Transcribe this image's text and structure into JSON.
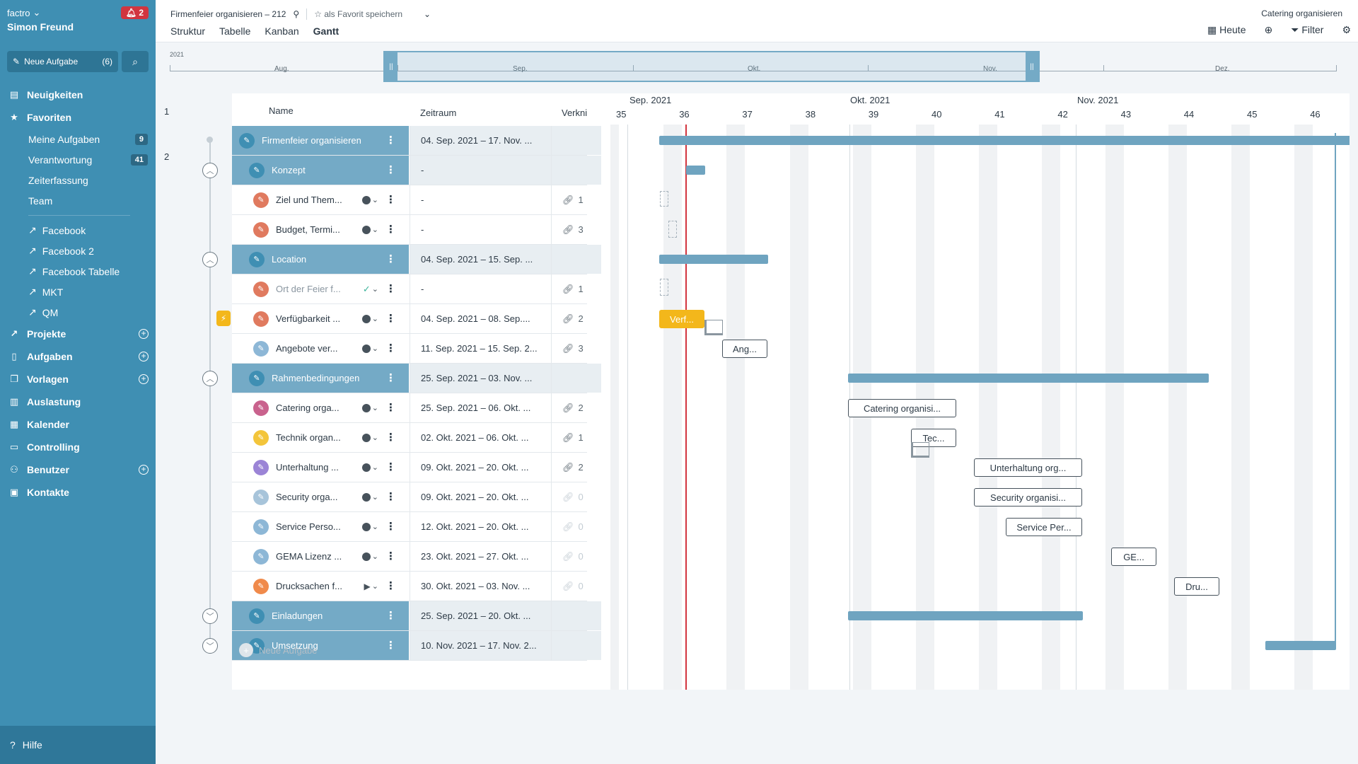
{
  "sidebar": {
    "brand": "factro",
    "user": "Simon Freund",
    "notifications": "2",
    "new_task_label": "Neue Aufgabe",
    "new_task_count": "(6)",
    "nav": {
      "news": "Neuigkeiten",
      "favorites": "Favoriten",
      "my_tasks": "Meine Aufgaben",
      "my_tasks_badge": "9",
      "responsibility": "Verantwortung",
      "responsibility_badge": "41",
      "time": "Zeiterfassung",
      "team": "Team",
      "fav1": "Facebook",
      "fav2": "Facebook 2",
      "fav3": "Facebook Tabelle",
      "fav4": "MKT",
      "fav5": "QM",
      "projects": "Projekte",
      "tasks": "Aufgaben",
      "templates": "Vorlagen",
      "workload": "Auslastung",
      "calendar": "Kalender",
      "controlling": "Controlling",
      "users": "Benutzer",
      "contacts": "Kontakte"
    },
    "help": "Hilfe"
  },
  "header": {
    "project": "Firmenfeier organisieren – 212",
    "favorite": "als Favorit speichern",
    "tabs": {
      "structure": "Struktur",
      "table": "Tabelle",
      "kanban": "Kanban",
      "gantt": "Gantt"
    },
    "right_title": "Catering organisieren",
    "today": "Heute",
    "filter": "Filter"
  },
  "timeline": {
    "year": "2021",
    "months": {
      "aug": "Aug.",
      "sep": "Sep.",
      "okt": "Okt.",
      "nov": "Nov.",
      "dez": "Dez."
    }
  },
  "table": {
    "col_name": "Name",
    "col_date": "Zeitraum",
    "col_link": "Verkni",
    "row_num_1": "1",
    "row_num_2": "2",
    "new_task": "Neue Aufgabe",
    "rows": [
      {
        "name": "Firmenfeier organisieren",
        "date": "04. Sep. 2021 – 17. Nov. ...",
        "link": ""
      },
      {
        "name": "Konzept",
        "date": "-",
        "link": ""
      },
      {
        "name": "Ziel und Them...",
        "date": "-",
        "link": "1"
      },
      {
        "name": "Budget, Termi...",
        "date": "-",
        "link": "3"
      },
      {
        "name": "Location",
        "date": "04. Sep. 2021 – 15. Sep. ...",
        "link": ""
      },
      {
        "name": "Ort der Feier f...",
        "date": "-",
        "link": "1"
      },
      {
        "name": "Verfügbarkeit ...",
        "date": "04. Sep. 2021 – 08. Sep....",
        "link": "2"
      },
      {
        "name": "Angebote ver...",
        "date": "11. Sep. 2021 – 15. Sep. 2...",
        "link": "3"
      },
      {
        "name": "Rahmenbedingungen",
        "date": "25. Sep. 2021 – 03. Nov. ...",
        "link": ""
      },
      {
        "name": "Catering orga...",
        "date": "25. Sep. 2021 – 06. Okt. ...",
        "link": "2"
      },
      {
        "name": "Technik organ...",
        "date": "02. Okt. 2021 – 06. Okt. ...",
        "link": "1"
      },
      {
        "name": "Unterhaltung ...",
        "date": "09. Okt. 2021 – 20. Okt. ...",
        "link": "2"
      },
      {
        "name": "Security orga...",
        "date": "09. Okt. 2021 – 20. Okt. ...",
        "link": "0"
      },
      {
        "name": "Service Perso...",
        "date": "12. Okt. 2021 – 20. Okt. ...",
        "link": "0"
      },
      {
        "name": "GEMA Lizenz ...",
        "date": "23. Okt. 2021 – 27. Okt. ...",
        "link": "0"
      },
      {
        "name": "Drucksachen f...",
        "date": "30. Okt. 2021 – 03. Nov. ...",
        "link": "0"
      },
      {
        "name": "Einladungen",
        "date": "25. Sep. 2021 – 20. Okt. ...",
        "link": ""
      },
      {
        "name": "Umsetzung",
        "date": "10. Nov. 2021 – 17. Nov. 2...",
        "link": ""
      }
    ]
  },
  "gantt": {
    "months": {
      "sep": "Sep. 2021",
      "okt": "Okt. 2021",
      "nov": "Nov. 2021"
    },
    "weeks": [
      "35",
      "36",
      "37",
      "38",
      "39",
      "40",
      "41",
      "42",
      "43",
      "44",
      "45",
      "46"
    ],
    "boxes": {
      "verf": "Verf...",
      "ang": "Ang...",
      "catering": "Catering organisi...",
      "tec": "Tec...",
      "unterhaltung": "Unterhaltung org...",
      "security": "Security organisi...",
      "service": "Service Per...",
      "gema": "GE...",
      "dru": "Dru..."
    }
  },
  "colors": {
    "sidebar": "#3f8fb3",
    "group_row": "#74aac6",
    "bar": "#6fa4c0",
    "today_line": "#d2353f",
    "highlight": "#f3b71b"
  }
}
